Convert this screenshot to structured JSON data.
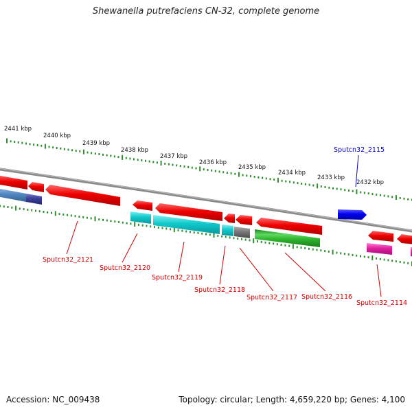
{
  "title": "Shewanella putrefaciens CN-32, complete genome",
  "footer": {
    "accession": "Accession: NC_009438",
    "summary": "Topology: circular; Length: 4,659,220 bp; Genes: 4,100"
  },
  "colors": {
    "backbone": "#8a8a8a",
    "tick": "#2e8b2e",
    "forward_label": "#0000cc",
    "reverse_label": "#cc0000"
  },
  "kbp_labels": [
    "2441 kbp",
    "2440 kbp",
    "2439 kbp",
    "2438 kbp",
    "2437 kbp",
    "2436 kbp",
    "2435 kbp",
    "2434 kbp",
    "2433 kbp",
    "2432 kbp"
  ],
  "gene_labels": [
    {
      "text": "Sputcn32_2115",
      "strand": "forward"
    },
    {
      "text": "Sputcn32_2121",
      "strand": "reverse"
    },
    {
      "text": "Sputcn32_2120",
      "strand": "reverse"
    },
    {
      "text": "Sputcn32_2119",
      "strand": "reverse"
    },
    {
      "text": "Sputcn32_2118",
      "strand": "reverse"
    },
    {
      "text": "Sputcn32_2117",
      "strand": "reverse"
    },
    {
      "text": "Sputcn32_2116",
      "strand": "reverse"
    },
    {
      "text": "Sputcn32_2114",
      "strand": "reverse"
    }
  ],
  "feature_tracks": [
    {
      "category": "cds-reverse",
      "color": "#e60000"
    },
    {
      "category": "cds-forward",
      "color": "#0000e6"
    },
    {
      "category": "cog-cyan",
      "color": "#00c8cc"
    },
    {
      "category": "cog-steelblue",
      "color": "#4f86c0"
    },
    {
      "category": "cog-navy",
      "color": "#3b3f9a"
    },
    {
      "category": "cog-gray",
      "color": "#777777"
    },
    {
      "category": "cog-green",
      "color": "#2fb52f"
    },
    {
      "category": "cog-magenta",
      "color": "#e020a0"
    }
  ]
}
